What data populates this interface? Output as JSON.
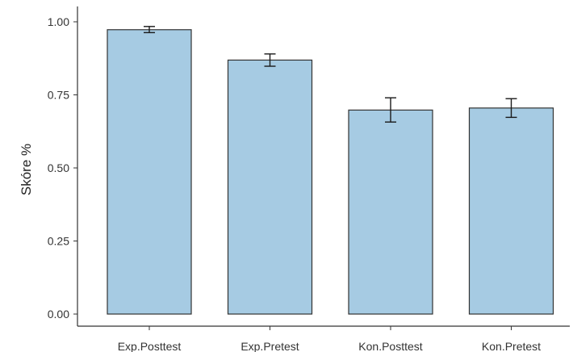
{
  "chart_data": {
    "type": "bar",
    "title": "",
    "xlabel": "",
    "ylabel": "Skóre %",
    "categories": [
      "Exp.Posttest",
      "Exp.Pretest",
      "Kon.Posttest",
      "Kon.Pretest"
    ],
    "values": [
      0.973,
      0.869,
      0.698,
      0.705
    ],
    "error_low": [
      0.963,
      0.848,
      0.657,
      0.673
    ],
    "error_high": [
      0.984,
      0.89,
      0.74,
      0.737
    ],
    "ylim": [
      0,
      1.05
    ],
    "yticks": [
      0.0,
      0.25,
      0.5,
      0.75,
      1.0
    ],
    "ytick_labels": [
      "0.00",
      "0.25",
      "0.50",
      "0.75",
      "1.00"
    ],
    "grid": false,
    "colors": {
      "bar_fill": "#a6cbe3",
      "bar_stroke": "#333333",
      "error_bar": "#1a1a1a",
      "axis": "#333333"
    }
  }
}
